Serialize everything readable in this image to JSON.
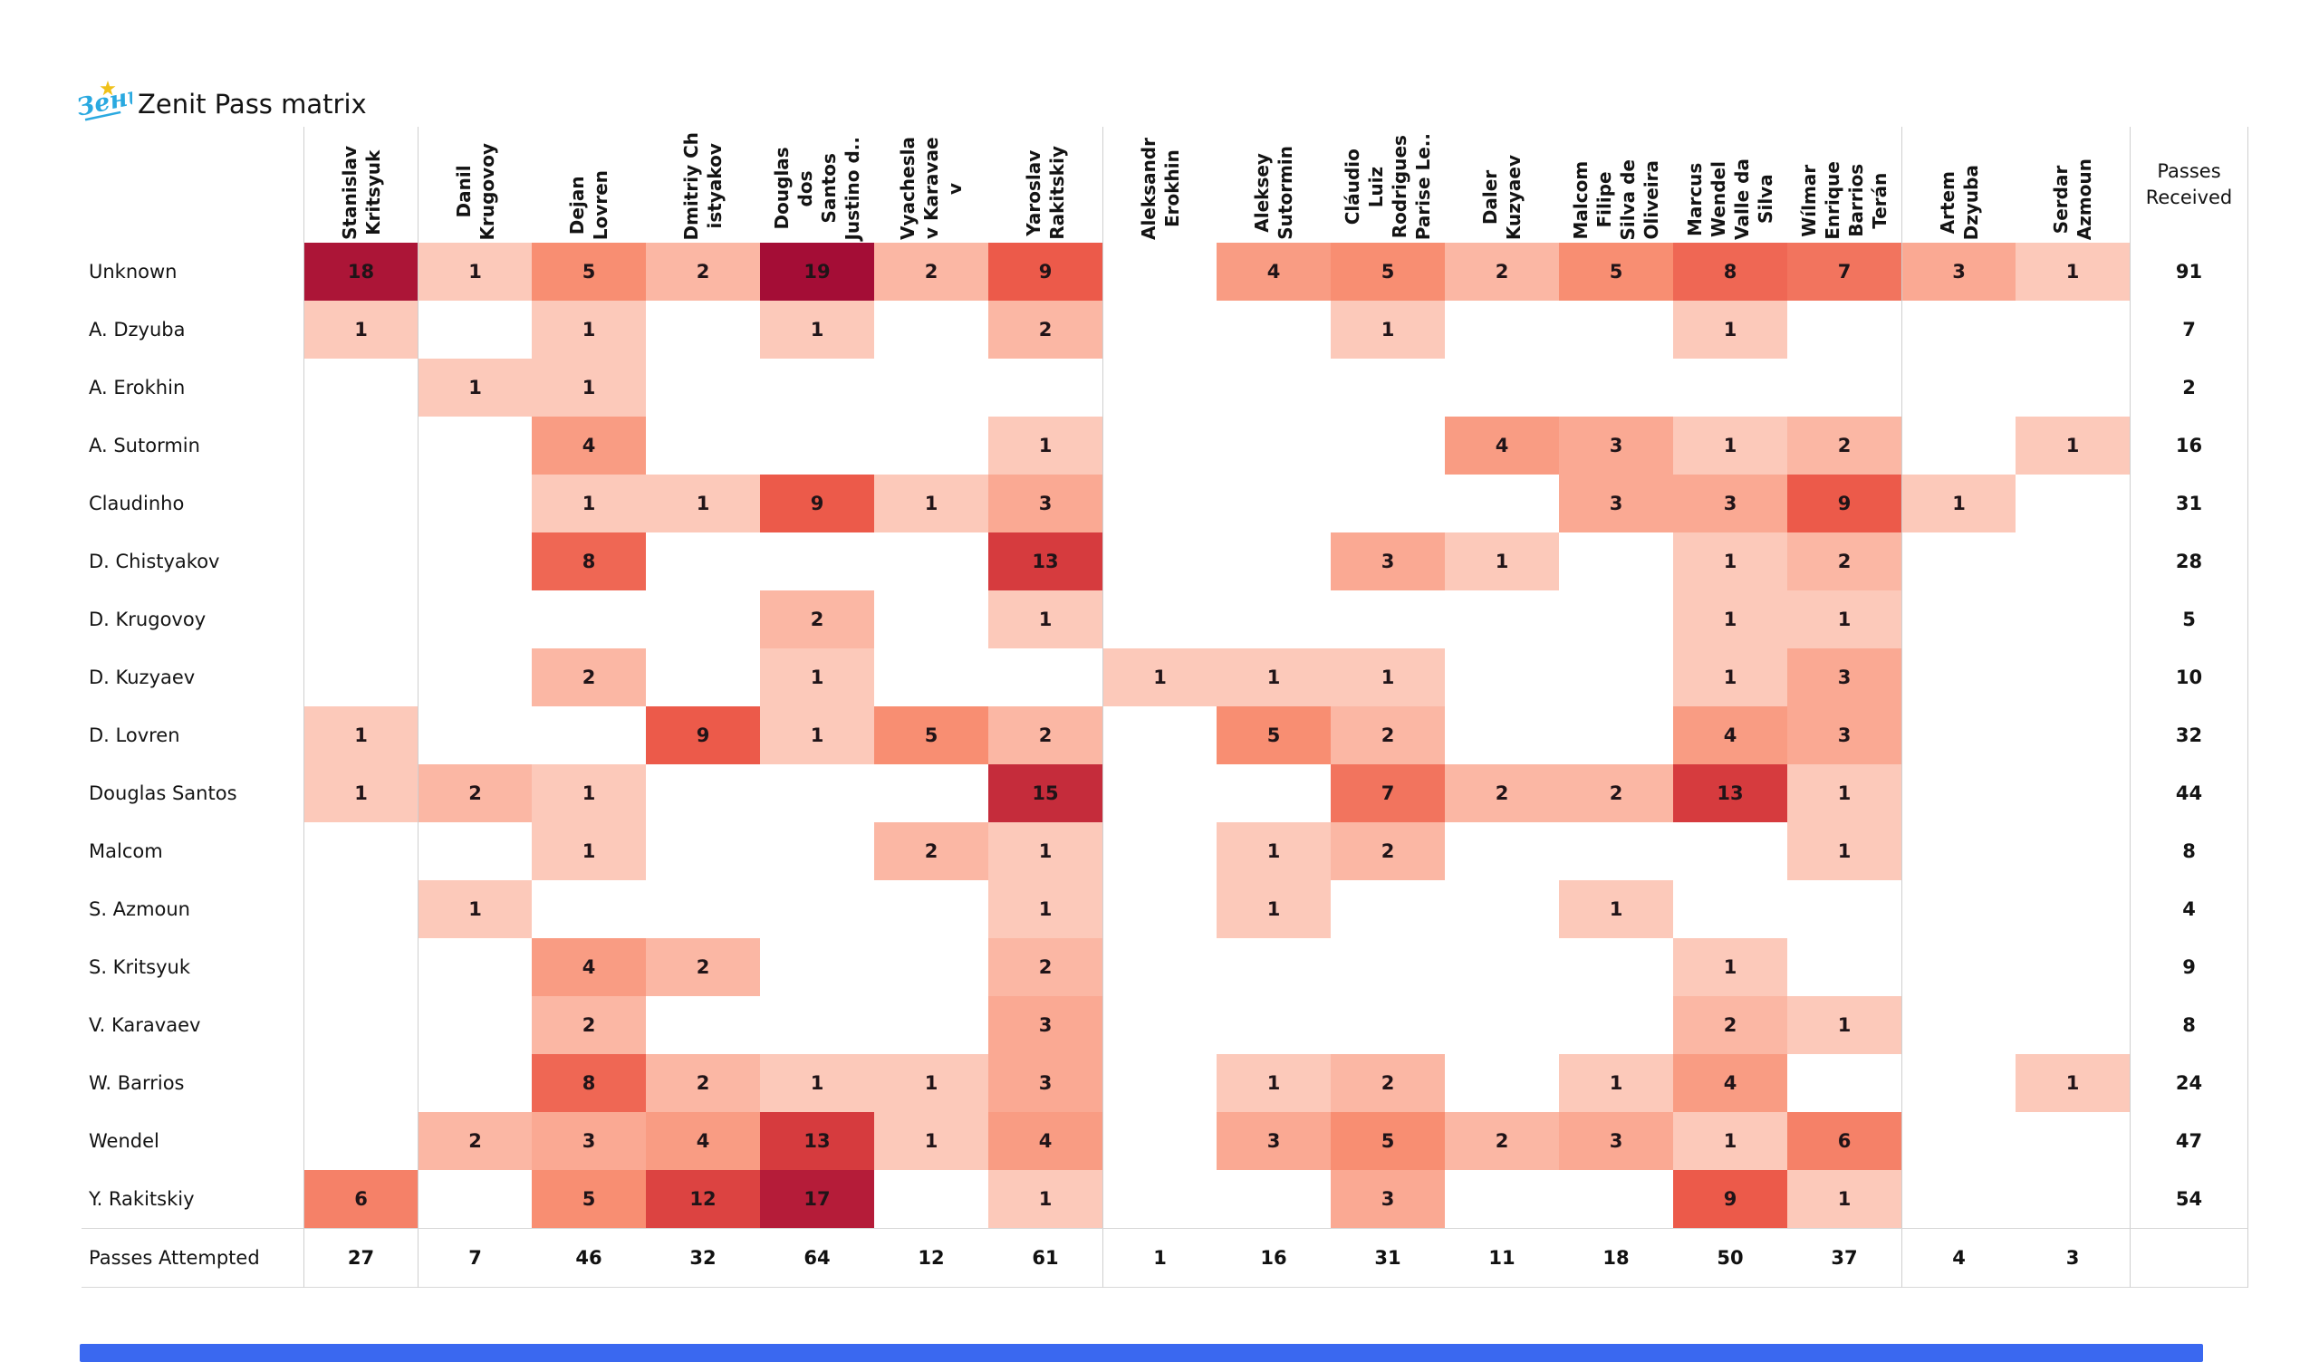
{
  "header": {
    "title": "Zenit Pass matrix"
  },
  "logo": {
    "star_color": "#f0c11a",
    "script_color": "#2aa9e0",
    "script_text": "Зенит"
  },
  "chart_data": {
    "type": "heatmap",
    "title": "Zenit Pass matrix",
    "columns": [
      "Stanislav\nKritsyuk",
      "Danil\nKrugovoy",
      "Dejan\nLovren",
      "Dmitriy Ch\nistyakov",
      "Douglas\ndos\nSantos\nJustino d..",
      "Vyachesla\nv Karavae\nv",
      "Yaroslav\nRakitskiy",
      "Aleksandr\nErokhin",
      "Aleksey\nSutormin",
      "Cláudio\nLuiz\nRodrigues\nParise Le..",
      "Daler\nKuzyaev",
      "Malcom\nFilipe\nSilva de\nOliveira",
      "Marcus\nWendel\nValle da\nSilva",
      "Wílmar\nEnrique\nBarrios\nTerán",
      "Artem\nDzyuba",
      "Serdar\nAzmoun"
    ],
    "received_header": "Passes\nReceived",
    "rows": [
      {
        "label": "Unknown",
        "values": [
          18,
          1,
          5,
          2,
          19,
          2,
          9,
          null,
          4,
          5,
          2,
          5,
          8,
          7,
          3,
          1
        ],
        "received": 91
      },
      {
        "label": "A. Dzyuba",
        "values": [
          1,
          null,
          1,
          null,
          1,
          null,
          2,
          null,
          null,
          1,
          null,
          null,
          1,
          null,
          null,
          null
        ],
        "received": 7
      },
      {
        "label": "A. Erokhin",
        "values": [
          null,
          1,
          1,
          null,
          null,
          null,
          null,
          null,
          null,
          null,
          null,
          null,
          null,
          null,
          null,
          null
        ],
        "received": 2
      },
      {
        "label": "A. Sutormin",
        "values": [
          null,
          null,
          4,
          null,
          null,
          null,
          1,
          null,
          null,
          null,
          4,
          3,
          1,
          2,
          null,
          1
        ],
        "received": 16
      },
      {
        "label": "Claudinho",
        "values": [
          null,
          null,
          1,
          1,
          9,
          1,
          3,
          null,
          null,
          null,
          null,
          3,
          3,
          9,
          1,
          null
        ],
        "received": 31
      },
      {
        "label": "D. Chistyakov",
        "values": [
          null,
          null,
          8,
          null,
          null,
          null,
          13,
          null,
          null,
          3,
          1,
          null,
          1,
          2,
          null,
          null
        ],
        "received": 28
      },
      {
        "label": "D. Krugovoy",
        "values": [
          null,
          null,
          null,
          null,
          2,
          null,
          1,
          null,
          null,
          null,
          null,
          null,
          1,
          1,
          null,
          null
        ],
        "received": 5
      },
      {
        "label": "D. Kuzyaev",
        "values": [
          null,
          null,
          2,
          null,
          1,
          null,
          null,
          1,
          1,
          1,
          null,
          null,
          1,
          3,
          null,
          null
        ],
        "received": 10
      },
      {
        "label": "D. Lovren",
        "values": [
          1,
          null,
          null,
          9,
          1,
          5,
          2,
          null,
          5,
          2,
          null,
          null,
          4,
          3,
          null,
          null
        ],
        "received": 32
      },
      {
        "label": "Douglas Santos",
        "values": [
          1,
          2,
          1,
          null,
          null,
          null,
          15,
          null,
          null,
          7,
          2,
          2,
          13,
          1,
          null,
          null
        ],
        "received": 44
      },
      {
        "label": "Malcom",
        "values": [
          null,
          null,
          1,
          null,
          null,
          2,
          1,
          null,
          1,
          2,
          null,
          null,
          null,
          1,
          null,
          null
        ],
        "received": 8
      },
      {
        "label": "S. Azmoun",
        "values": [
          null,
          1,
          null,
          null,
          null,
          null,
          1,
          null,
          1,
          null,
          null,
          1,
          null,
          null,
          null,
          null
        ],
        "received": 4
      },
      {
        "label": "S. Kritsyuk",
        "values": [
          null,
          null,
          4,
          2,
          null,
          null,
          2,
          null,
          null,
          null,
          null,
          null,
          1,
          null,
          null,
          null
        ],
        "received": 9
      },
      {
        "label": "V. Karavaev",
        "values": [
          null,
          null,
          2,
          null,
          null,
          null,
          3,
          null,
          null,
          null,
          null,
          null,
          2,
          1,
          null,
          null
        ],
        "received": 8
      },
      {
        "label": "W. Barrios",
        "values": [
          null,
          null,
          8,
          2,
          1,
          1,
          3,
          null,
          1,
          2,
          null,
          1,
          4,
          null,
          null,
          1
        ],
        "received": 24
      },
      {
        "label": "Wendel",
        "values": [
          null,
          2,
          3,
          4,
          13,
          1,
          4,
          null,
          3,
          5,
          2,
          3,
          1,
          6,
          null,
          null
        ],
        "received": 47
      },
      {
        "label": "Y. Rakitskiy",
        "values": [
          6,
          null,
          5,
          12,
          17,
          null,
          1,
          null,
          null,
          3,
          null,
          null,
          9,
          1,
          null,
          null
        ],
        "received": 54
      }
    ],
    "attempted_label": "Passes Attempted",
    "attempted": [
      27,
      7,
      46,
      32,
      64,
      12,
      61,
      1,
      16,
      31,
      11,
      18,
      50,
      37,
      4,
      3
    ],
    "vmin": 1,
    "vmax": 19,
    "color_scale": {
      "values": [
        1,
        2,
        5,
        9,
        13,
        19
      ],
      "colors": [
        "#fcc9ba",
        "#fbb7a4",
        "#f88e72",
        "#ec5a4a",
        "#d63b3e",
        "#a40d36"
      ]
    },
    "group_separator_columns": [
      0,
      1,
      7,
      14,
      16
    ],
    "separator_color": "#cfcfcf"
  },
  "footer": {
    "scrollbar_color": "#3a68f0"
  }
}
